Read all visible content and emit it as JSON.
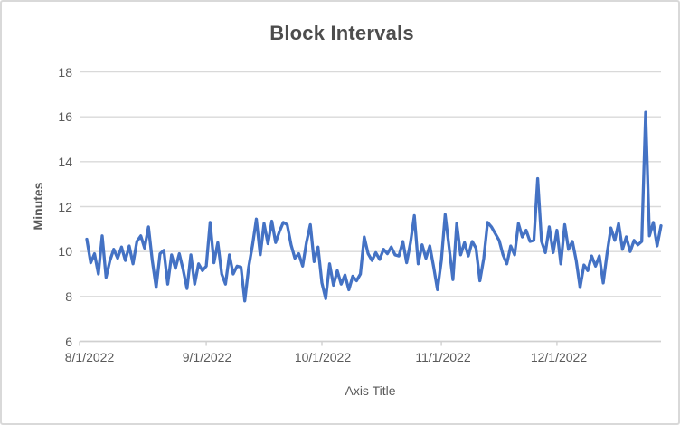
{
  "chart_data": {
    "type": "line",
    "title": "Block Intervals",
    "xlabel": "Axis Title",
    "ylabel": "Minutes",
    "legend": "none",
    "grid": "horizontal",
    "ylim": [
      6,
      18
    ],
    "y_ticks": [
      6,
      8,
      10,
      12,
      14,
      16,
      18
    ],
    "y_tick_labels": [
      "6",
      "8",
      "10",
      "12",
      "14",
      "16",
      "18"
    ],
    "x_tick_labels": [
      "8/1/2022",
      "9/1/2022",
      "10/1/2022",
      "11/1/2022",
      "12/1/2022"
    ],
    "x_tick_days": [
      0,
      31,
      61,
      92,
      122
    ],
    "x_range": [
      "8/1/2022",
      "12/28/2022"
    ],
    "colors": {
      "line": "#4472C4",
      "grid": "#D9D9D9",
      "axis": "#D0D0D0",
      "text": "#595959",
      "title": "#4D4D4D"
    },
    "series": [
      {
        "name": "Block Intervals",
        "unit": "minutes",
        "start_date": "8/1/2022",
        "interval": "daily",
        "values": [
          10.55,
          9.5,
          9.9,
          9.0,
          10.7,
          8.85,
          9.6,
          10.1,
          9.7,
          10.2,
          9.6,
          10.25,
          9.45,
          10.45,
          10.7,
          10.15,
          11.1,
          9.6,
          8.4,
          9.9,
          10.05,
          8.55,
          9.85,
          9.25,
          9.9,
          9.2,
          8.35,
          9.85,
          8.55,
          9.45,
          9.15,
          9.35,
          11.3,
          9.5,
          10.4,
          9.0,
          8.55,
          9.85,
          9.0,
          9.35,
          9.3,
          7.8,
          9.3,
          10.3,
          11.45,
          9.85,
          11.25,
          10.35,
          11.35,
          10.4,
          10.9,
          11.3,
          11.2,
          10.3,
          9.7,
          9.9,
          9.35,
          10.4,
          11.2,
          9.55,
          10.2,
          8.6,
          7.9,
          9.45,
          8.5,
          9.15,
          8.55,
          8.95,
          8.3,
          8.9,
          8.7,
          9.0,
          10.65,
          9.9,
          9.6,
          9.95,
          9.65,
          10.1,
          9.9,
          10.2,
          9.85,
          9.8,
          10.45,
          9.5,
          10.4,
          11.6,
          9.45,
          10.3,
          9.7,
          10.25,
          9.3,
          8.3,
          9.6,
          11.65,
          10.2,
          8.75,
          11.25,
          9.85,
          10.4,
          9.8,
          10.45,
          10.15,
          8.7,
          9.7,
          11.3,
          11.1,
          10.8,
          10.5,
          9.85,
          9.45,
          10.25,
          9.85,
          11.25,
          10.65,
          10.95,
          10.45,
          10.5,
          13.25,
          10.45,
          9.95,
          11.1,
          9.95,
          10.95,
          9.45,
          11.2,
          10.1,
          10.45,
          9.6,
          8.4,
          9.4,
          9.15,
          9.8,
          9.35,
          9.8,
          8.6,
          9.9,
          11.05,
          10.5,
          11.25,
          10.1,
          10.65,
          10.0,
          10.5,
          10.3,
          10.45,
          16.2,
          10.7,
          11.3,
          10.25,
          11.15
        ]
      }
    ]
  }
}
